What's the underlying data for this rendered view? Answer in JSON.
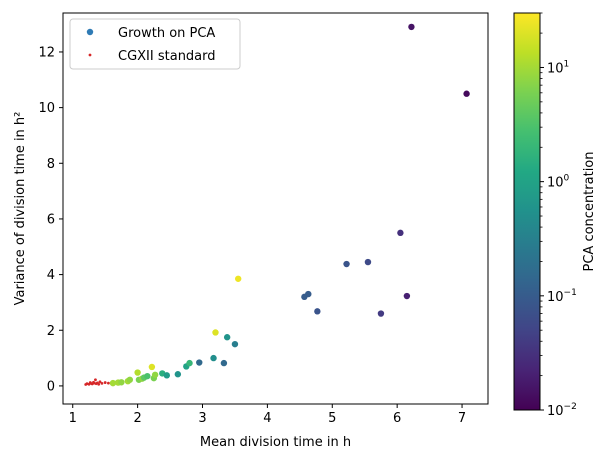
{
  "chart_data": {
    "type": "scatter",
    "title": "",
    "xlabel": "Mean division time in h",
    "ylabel": "Variance of division time in h²",
    "xlim": [
      0.85,
      7.4
    ],
    "ylim": [
      -0.65,
      13.4
    ],
    "xticks": [
      1,
      2,
      3,
      4,
      5,
      6,
      7
    ],
    "yticks": [
      0,
      2,
      4,
      6,
      8,
      10,
      12
    ],
    "legend_position": "top-left",
    "grid": false,
    "series": [
      {
        "name": "Growth on PCA",
        "marker": "circle",
        "legend_color": "#2f7bb5",
        "points": [
          {
            "x": 1.62,
            "y": 0.1,
            "c": 10
          },
          {
            "x": 1.7,
            "y": 0.12,
            "c": 10
          },
          {
            "x": 1.75,
            "y": 0.13,
            "c": 8
          },
          {
            "x": 1.85,
            "y": 0.17,
            "c": 10
          },
          {
            "x": 1.88,
            "y": 0.22,
            "c": 8
          },
          {
            "x": 2.0,
            "y": 0.48,
            "c": 12
          },
          {
            "x": 2.02,
            "y": 0.22,
            "c": 6
          },
          {
            "x": 2.07,
            "y": 0.26,
            "c": 8
          },
          {
            "x": 2.1,
            "y": 0.3,
            "c": 4
          },
          {
            "x": 2.15,
            "y": 0.35,
            "c": 3
          },
          {
            "x": 2.22,
            "y": 0.68,
            "c": 20
          },
          {
            "x": 2.25,
            "y": 0.28,
            "c": 6
          },
          {
            "x": 2.27,
            "y": 0.4,
            "c": 8
          },
          {
            "x": 2.38,
            "y": 0.45,
            "c": 1.5
          },
          {
            "x": 2.45,
            "y": 0.38,
            "c": 0.8
          },
          {
            "x": 2.62,
            "y": 0.42,
            "c": 0.6
          },
          {
            "x": 2.75,
            "y": 0.7,
            "c": 1.0
          },
          {
            "x": 2.8,
            "y": 0.82,
            "c": 2.0
          },
          {
            "x": 2.95,
            "y": 0.84,
            "c": 0.15
          },
          {
            "x": 3.17,
            "y": 1.0,
            "c": 0.5
          },
          {
            "x": 3.2,
            "y": 1.92,
            "c": 20
          },
          {
            "x": 3.33,
            "y": 0.82,
            "c": 0.15
          },
          {
            "x": 3.38,
            "y": 1.75,
            "c": 0.6
          },
          {
            "x": 3.5,
            "y": 1.5,
            "c": 0.3
          },
          {
            "x": 3.55,
            "y": 3.85,
            "c": 25
          },
          {
            "x": 4.57,
            "y": 3.2,
            "c": 0.1
          },
          {
            "x": 4.63,
            "y": 3.3,
            "c": 0.1
          },
          {
            "x": 4.77,
            "y": 2.68,
            "c": 0.08
          },
          {
            "x": 5.22,
            "y": 4.38,
            "c": 0.08
          },
          {
            "x": 5.55,
            "y": 4.45,
            "c": 0.06
          },
          {
            "x": 5.75,
            "y": 2.6,
            "c": 0.04
          },
          {
            "x": 6.05,
            "y": 5.5,
            "c": 0.03
          },
          {
            "x": 6.15,
            "y": 3.23,
            "c": 0.02
          },
          {
            "x": 6.22,
            "y": 12.9,
            "c": 0.015
          },
          {
            "x": 7.07,
            "y": 10.5,
            "c": 0.012
          }
        ]
      },
      {
        "name": "CGXII standard",
        "marker": "small-dot",
        "color": "#d62728",
        "points": [
          {
            "x": 1.2,
            "y": 0.05
          },
          {
            "x": 1.22,
            "y": 0.08
          },
          {
            "x": 1.25,
            "y": 0.06
          },
          {
            "x": 1.27,
            "y": 0.12
          },
          {
            "x": 1.28,
            "y": 0.09
          },
          {
            "x": 1.3,
            "y": 0.07
          },
          {
            "x": 1.32,
            "y": 0.13
          },
          {
            "x": 1.33,
            "y": 0.1
          },
          {
            "x": 1.35,
            "y": 0.22
          },
          {
            "x": 1.36,
            "y": 0.08
          },
          {
            "x": 1.38,
            "y": 0.11
          },
          {
            "x": 1.4,
            "y": 0.06
          },
          {
            "x": 1.42,
            "y": 0.15
          },
          {
            "x": 1.45,
            "y": 0.09
          },
          {
            "x": 1.5,
            "y": 0.12
          },
          {
            "x": 1.55,
            "y": 0.1
          }
        ]
      }
    ],
    "colorbar": {
      "label": "PCA concentration",
      "scale": "log",
      "colormap": "viridis",
      "range": [
        0.01,
        30
      ],
      "ticks": [
        {
          "value": 0.01,
          "base": "10",
          "exp": "−2"
        },
        {
          "value": 0.1,
          "base": "10",
          "exp": "−1"
        },
        {
          "value": 1,
          "base": "10",
          "exp": "0"
        },
        {
          "value": 10,
          "base": "10",
          "exp": "1"
        }
      ]
    }
  }
}
